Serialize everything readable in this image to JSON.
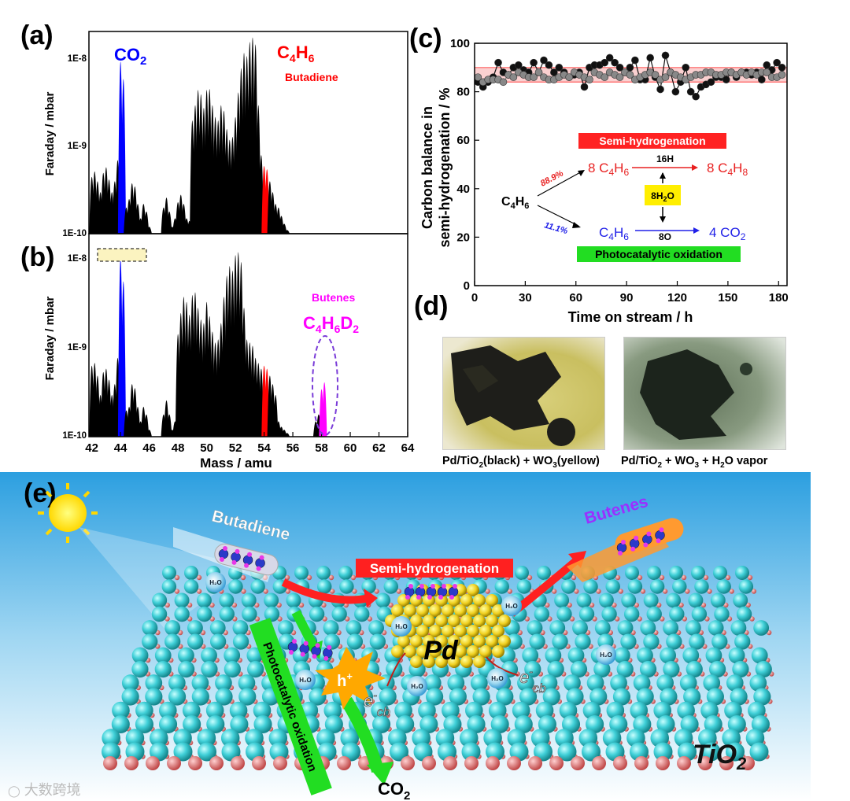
{
  "panels": {
    "a": "(a)",
    "b": "(b)",
    "c": "(c)",
    "d": "(d)",
    "e": "(e)"
  },
  "chart_data": [
    {
      "id": "a",
      "type": "bar",
      "ylabel": "Faraday / mbar",
      "yscale": "log",
      "ylim": [
        1e-10,
        2e-08
      ],
      "yticks": [
        "1E-8",
        "1E-9",
        "1E-10"
      ],
      "x": [
        42,
        42.2,
        42.4,
        42.6,
        42.8,
        43,
        43.2,
        43.4,
        43.6,
        43.8,
        44,
        44.2,
        44.4,
        44.6,
        44.8,
        45,
        45.2,
        45.4,
        45.6,
        45.8,
        46,
        46.2,
        46.4,
        46.6,
        46.8,
        47,
        47.2,
        47.4,
        47.6,
        47.8,
        48,
        48.2,
        48.4,
        48.6,
        48.8,
        49,
        49.2,
        49.4,
        49.6,
        49.8,
        50,
        50.2,
        50.4,
        50.6,
        50.8,
        51,
        51.2,
        51.4,
        51.6,
        51.8,
        52,
        52.2,
        52.4,
        52.6,
        52.8,
        53,
        53.2,
        53.4,
        53.6,
        53.8,
        54,
        54.2,
        54.4,
        54.6,
        54.8,
        55,
        55.2,
        55.4,
        55.6,
        55.8,
        56,
        56.2,
        56.4,
        56.6,
        56.8,
        57
      ],
      "values": [
        4.5e-10,
        5.2e-10,
        4e-10,
        3e-10,
        5e-10,
        5.8e-10,
        4.2e-10,
        3e-10,
        4e-10,
        7e-10,
        9.5e-09,
        6e-09,
        2e-10,
        2.5e-10,
        3.8e-10,
        3.5e-10,
        2.2e-10,
        1.5e-10,
        2.2e-10,
        1.8e-10,
        1.2e-10,
        1e-10,
        1e-10,
        1e-10,
        1e-10,
        2e-10,
        2.6e-10,
        1.8e-10,
        1.2e-10,
        1.5e-10,
        2.3e-10,
        2.8e-10,
        2.2e-10,
        1.5e-10,
        1.4e-10,
        2e-09,
        3e-09,
        4.5e-09,
        4e-09,
        2.8e-09,
        4.5e-09,
        4.6e-09,
        3e-09,
        2.2e-09,
        2e-09,
        3e-09,
        2.6e-09,
        1.6e-09,
        1.2e-09,
        1.3e-09,
        2.2e-09,
        4.2e-09,
        8e-09,
        1.2e-08,
        1.1e-08,
        1.6e-08,
        1.8e-08,
        1.5e-08,
        3e-09,
        8e-10,
        6e-10,
        5.5e-10,
        4e-10,
        3e-10,
        2.2e-10,
        2e-10,
        1.6e-10,
        1.3e-10,
        1.1e-10,
        1e-10,
        1e-10,
        1e-10,
        1e-10,
        1e-10,
        1e-10,
        1e-10
      ],
      "annotations": {
        "co2": "CO2",
        "c4h6": "C4H6",
        "butadiene": "Butadiene"
      }
    },
    {
      "id": "b",
      "type": "bar",
      "xlabel": "Mass / amu",
      "ylabel": "Faraday / mbar",
      "yscale": "log",
      "ylim": [
        1e-10,
        2e-08
      ],
      "yticks": [
        "1E-8",
        "1E-9",
        "1E-10"
      ],
      "xticks": [
        "42",
        "44",
        "46",
        "48",
        "50",
        "52",
        "54",
        "56",
        "58",
        "60",
        "62",
        "64"
      ],
      "xlim": [
        41.8,
        64
      ],
      "x": [
        42,
        42.2,
        42.4,
        42.6,
        42.8,
        43,
        43.2,
        43.4,
        43.6,
        43.8,
        44,
        44.2,
        44.4,
        44.6,
        44.8,
        45,
        45.2,
        45.4,
        45.6,
        45.8,
        46,
        46.2,
        46.4,
        46.6,
        46.8,
        47,
        47.2,
        47.4,
        47.6,
        47.8,
        48,
        48.2,
        48.4,
        48.6,
        48.8,
        49,
        49.2,
        49.4,
        49.6,
        49.8,
        50,
        50.2,
        50.4,
        50.6,
        50.8,
        51,
        51.2,
        51.4,
        51.6,
        51.8,
        52,
        52.2,
        52.4,
        52.6,
        52.8,
        53,
        53.2,
        53.4,
        53.6,
        53.8,
        54,
        54.2,
        54.4,
        54.6,
        54.8,
        55,
        55.2,
        55.4,
        55.6,
        55.8,
        56,
        56.2,
        56.4,
        56.6,
        56.8,
        57,
        57.2,
        57.4,
        57.6,
        57.8,
        58,
        58.2
      ],
      "values": [
        6.5e-10,
        7e-10,
        5e-10,
        3e-10,
        5.5e-10,
        6e-10,
        4.5e-10,
        3e-10,
        4e-10,
        8e-10,
        1.1e-08,
        6e-09,
        2e-10,
        2.2e-10,
        4e-10,
        3.6e-10,
        2.2e-10,
        1.5e-10,
        2.2e-10,
        1.8e-10,
        1.2e-10,
        1e-10,
        1e-10,
        1e-10,
        1e-10,
        1.8e-10,
        2.6e-10,
        1.8e-10,
        1.2e-10,
        1.5e-10,
        1.5e-09,
        2.6e-09,
        4e-09,
        3.5e-09,
        2.5e-09,
        4.2e-09,
        4.5e-09,
        3e-09,
        2.2e-09,
        2e-09,
        3.5e-09,
        2.4e-09,
        1.6e-09,
        1.2e-09,
        1.3e-09,
        2e-09,
        4e-09,
        7e-09,
        9e-09,
        8e-09,
        1.2e-08,
        1.3e-08,
        1e-08,
        3e-09,
        1.3e-09,
        1.2e-09,
        1.1e-09,
        8e-10,
        7e-10,
        6e-10,
        6.5e-10,
        6e-10,
        5e-10,
        4e-10,
        3e-10,
        1.5e-10,
        1.3e-10,
        1.2e-10,
        1.1e-10,
        1e-10,
        1e-10,
        1e-10,
        1e-10,
        1e-10,
        1e-10,
        1e-10,
        1e-10,
        1e-10,
        1.5e-10,
        1.8e-10,
        3.5e-10,
        4.2e-10
      ],
      "annotations": {
        "butenes": "Butenes",
        "c4h6d2": "C4H6D2"
      }
    },
    {
      "id": "c",
      "type": "scatter",
      "xlabel": "Time on stream / h",
      "ylabel_line1": "Carbon balance in",
      "ylabel_line2": "semi-hydrogenation / %",
      "xlim": [
        0,
        185
      ],
      "ylim": [
        0,
        100
      ],
      "xticks": [
        "0",
        "30",
        "60",
        "90",
        "120",
        "150",
        "180"
      ],
      "yticks": [
        "0",
        "20",
        "40",
        "60",
        "80",
        "100"
      ],
      "band": [
        84,
        90
      ],
      "series": [
        {
          "color": "#111111",
          "x": [
            2,
            5,
            8,
            11,
            14,
            17,
            20,
            23,
            26,
            29,
            32,
            35,
            38,
            41,
            44,
            47,
            50,
            53,
            56,
            59,
            62,
            65,
            68,
            71,
            74,
            77,
            80,
            83,
            86,
            89,
            92,
            95,
            98,
            101,
            104,
            107,
            110,
            113,
            116,
            119,
            122,
            125,
            128,
            131,
            134,
            137,
            140,
            143,
            146,
            149,
            152,
            155,
            158,
            161,
            164,
            167,
            170,
            173,
            176,
            179,
            182
          ],
          "y": [
            84,
            82,
            84,
            86,
            92,
            88,
            87,
            90,
            91,
            89,
            88,
            92,
            88,
            93,
            91,
            88,
            90,
            88,
            86,
            87,
            88,
            82,
            90,
            91,
            91,
            92,
            94,
            92,
            90,
            88,
            90,
            93,
            85,
            85,
            94,
            86,
            81,
            95,
            88,
            80,
            84,
            90,
            80,
            78,
            82,
            83,
            84,
            86,
            86,
            85,
            88,
            86,
            88,
            88,
            87,
            88,
            85,
            91,
            89,
            92,
            90
          ]
        },
        {
          "color": "#888888",
          "x": [
            2,
            5,
            8,
            11,
            14,
            17,
            20,
            23,
            26,
            29,
            32,
            35,
            38,
            41,
            44,
            47,
            50,
            53,
            56,
            59,
            62,
            65,
            68,
            71,
            74,
            77,
            80,
            83,
            86,
            89,
            92,
            95,
            98,
            101,
            104,
            107,
            110,
            113,
            116,
            119,
            122,
            125,
            128,
            131,
            134,
            137,
            140,
            143,
            146,
            149,
            152,
            155,
            158,
            161,
            164,
            167,
            170,
            173,
            176,
            179,
            182
          ],
          "y": [
            86,
            84,
            85,
            85,
            85,
            84,
            87,
            86,
            88,
            87,
            86,
            86,
            88,
            86,
            85,
            85,
            86,
            87,
            86,
            88,
            87,
            86,
            85,
            88,
            87,
            86,
            88,
            87,
            86,
            88,
            87,
            85,
            86,
            87,
            88,
            87,
            85,
            86,
            88,
            87,
            86,
            85,
            86,
            87,
            87,
            88,
            88,
            87,
            87,
            88,
            88,
            87,
            88,
            87,
            88,
            87,
            88,
            88,
            86,
            86,
            87
          ]
        }
      ],
      "scheme": {
        "semi_title": "Semi-hydrogenation",
        "photo_title": "Photocatalytic oxidation",
        "reactant": "C4H6",
        "pct_red": "88.9%",
        "pct_blue": "11.1%",
        "prod_red_left": "8 C4H6",
        "prod_red_right": "8 C4H8",
        "arrow_red": "16H",
        "water": "8H2O",
        "prod_blue_left": "C4H6",
        "prod_blue_right": "4 CO2",
        "arrow_blue": "8O"
      }
    }
  ],
  "photos": {
    "left_caption": "Pd/TiO2(black) + WO3(yellow)",
    "right_caption": "Pd/TiO2 + WO3 + H2O vapor"
  },
  "scene": {
    "butadiene": "Butadiene",
    "butenes": "Butenes",
    "semi": "Semi-hydrogenation",
    "photo_ox": "Photocatalytic oxidation",
    "pd": "Pd",
    "tio2": "TiO2",
    "co2": "CO2",
    "hplus": "h+",
    "ecb": "e-cb",
    "h2o": "H2O",
    "h": "H"
  },
  "watermark": "大数跨境",
  "colors": {
    "co2_bar": "#0000ff",
    "c4h6_bar": "#ff0000",
    "butene_bar": "#ff00ff",
    "green_label": "#22dd22",
    "red_label": "#ff2222",
    "yellow_box": "#ffee00",
    "lattice_ball": "#40d0d8",
    "lattice_o": "#e07070",
    "pd_ball": "#f0d020"
  }
}
